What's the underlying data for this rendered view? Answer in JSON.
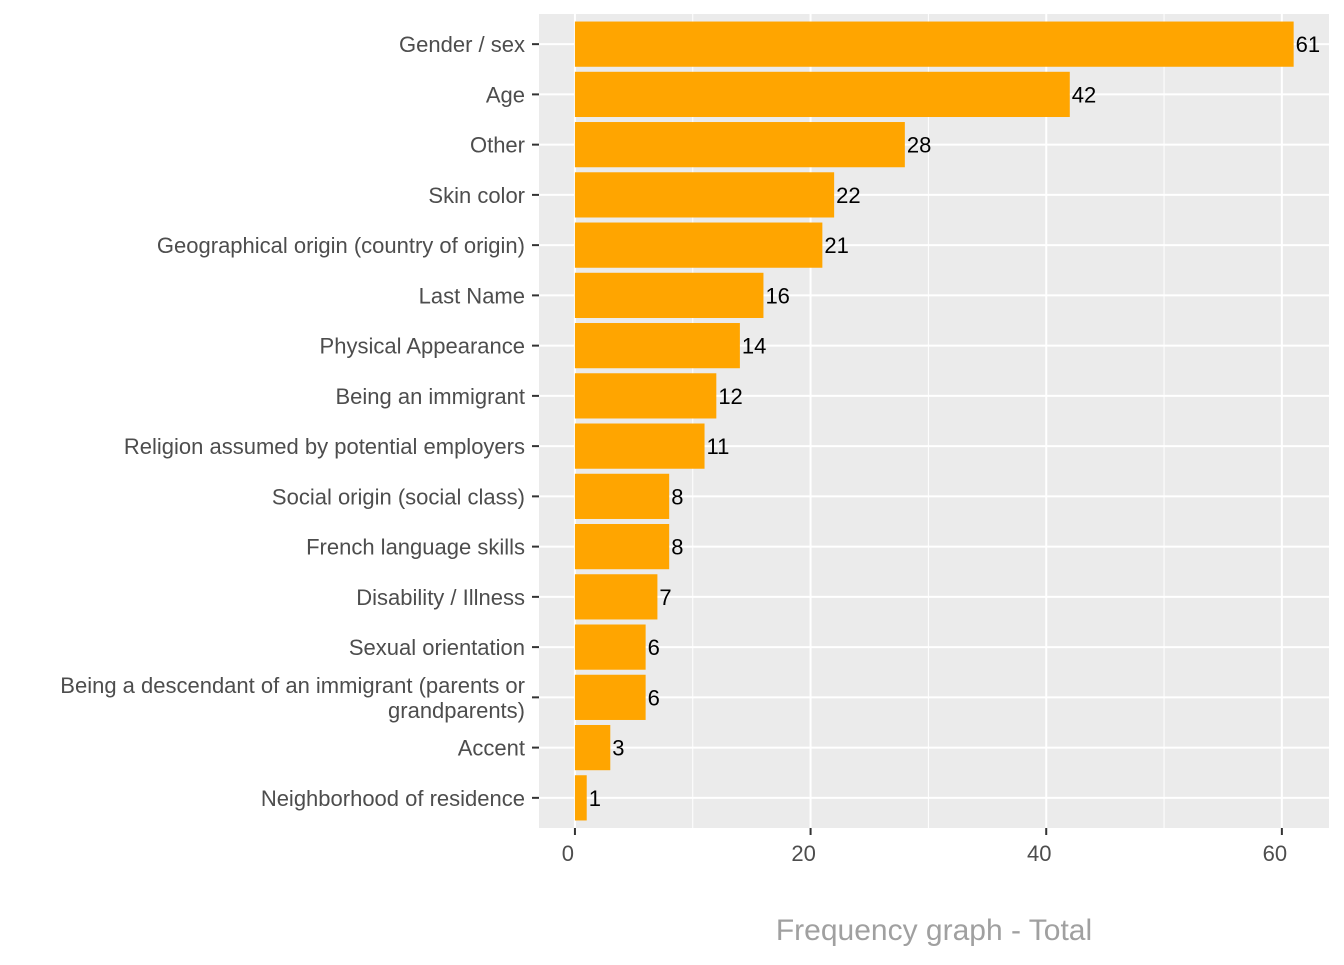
{
  "chart_data": {
    "type": "bar",
    "orientation": "horizontal",
    "title": "Frequency graph - Total",
    "xlabel": "",
    "ylabel": "",
    "categories": [
      "Gender / sex",
      "Age",
      "Other",
      "Skin color",
      "Geographical origin (country of origin)",
      "Last Name",
      "Physical Appearance",
      "Being an immigrant",
      "Religion assumed by potential employers",
      "Social origin (social class)",
      "French language skills",
      "Disability / Illness",
      "Sexual orientation",
      "Being a descendant of an immigrant (parents or grandparents)",
      "Accent",
      "Neighborhood of residence"
    ],
    "values": [
      61,
      42,
      28,
      22,
      21,
      16,
      14,
      12,
      11,
      8,
      8,
      7,
      6,
      6,
      3,
      1
    ],
    "xlim": [
      -3.05,
      64
    ],
    "x_ticks": [
      0,
      20,
      40,
      60
    ],
    "x_minor_ticks": [
      10,
      30,
      50
    ],
    "grid": true,
    "data_labels": true,
    "colors": {
      "bar": "#FFA500",
      "panel": "#EBEBEB",
      "grid": "#FFFFFF",
      "axis_text": "#4D4D4D",
      "title": "#A0A0A0"
    }
  }
}
